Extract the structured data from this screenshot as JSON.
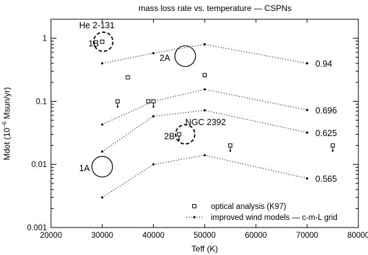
{
  "chart_data": {
    "type": "scatter",
    "title": "mass loss rate vs. temperature — CSPNs",
    "xlabel": "Teff (K)",
    "ylabel": "Mdot (10",
    "ylabel_sup": "−6",
    "ylabel_tail": " Msun/yr)",
    "xlim": [
      20000,
      80000
    ],
    "ylim": [
      0.001,
      2
    ],
    "yscale": "log",
    "xticks": [
      {
        "v": 20000,
        "label": "20000"
      },
      {
        "v": 30000,
        "label": "30000"
      },
      {
        "v": 40000,
        "label": "40000"
      },
      {
        "v": 50000,
        "label": "50000"
      },
      {
        "v": 60000,
        "label": "60000"
      },
      {
        "v": 70000,
        "label": "70000"
      },
      {
        "v": 80000,
        "label": "80000"
      }
    ],
    "yticks": [
      {
        "v": 0.001,
        "label": "0.001"
      },
      {
        "v": 0.01,
        "label": "0.01"
      },
      {
        "v": 0.1,
        "label": "0.1"
      },
      {
        "v": 1,
        "label": "1"
      }
    ],
    "series": [
      {
        "name": "optical analysis (K97)",
        "kind": "points",
        "points": [
          {
            "x": 30000,
            "y": 0.88
          },
          {
            "x": 33000,
            "y": 0.1,
            "arrow": true
          },
          {
            "x": 35000,
            "y": 0.24
          },
          {
            "x": 39000,
            "y": 0.1
          },
          {
            "x": 40000,
            "y": 0.1,
            "arrow": true
          },
          {
            "x": 45000,
            "y": 0.03,
            "arrow": true
          },
          {
            "x": 50000,
            "y": 0.26
          },
          {
            "x": 55000,
            "y": 0.02,
            "arrow": true
          },
          {
            "x": 75000,
            "y": 0.02,
            "arrow": true
          }
        ]
      },
      {
        "name": "improved wind models — c-m-L grid",
        "kind": "lines",
        "tracks": [
          {
            "label": "0.94",
            "x": [
              30000,
              40000,
              50000,
              70000
            ],
            "y": [
              0.4,
              0.58,
              0.8,
              0.4
            ]
          },
          {
            "label": "0.696",
            "x": [
              30000,
              40000,
              50000,
              70000
            ],
            "y": [
              0.043,
              0.1,
              0.155,
              0.073
            ]
          },
          {
            "label": "0.625",
            "x": [
              30000,
              40000,
              50000,
              70000
            ],
            "y": [
              0.016,
              0.058,
              0.072,
              0.032
            ]
          },
          {
            "label": "0.565",
            "x": [
              30000,
              40000,
              50000,
              70000
            ],
            "y": [
              0.003,
              0.01,
              0.014,
              0.006
            ]
          }
        ]
      }
    ],
    "annotations": [
      {
        "text": "He 2-131",
        "x": 25500,
        "y": 1.45
      },
      {
        "text": "1B",
        "x": 27300,
        "y": 0.74
      },
      {
        "text": "2A",
        "x": 41200,
        "y": 0.44
      },
      {
        "text": "NGC 2392",
        "x": 46200,
        "y": 0.042
      },
      {
        "text": "2B",
        "x": 42100,
        "y": 0.025
      },
      {
        "text": "1A",
        "x": 25500,
        "y": 0.0078
      }
    ],
    "circles": [
      {
        "x": 30200,
        "y": 0.88,
        "dashed": true
      },
      {
        "x": 46200,
        "y": 0.52,
        "dashed": false
      },
      {
        "x": 46200,
        "y": 0.03,
        "dashed": true
      },
      {
        "x": 30000,
        "y": 0.0092,
        "dashed": false
      }
    ],
    "legend_position": "bottom-right",
    "grid": false
  }
}
